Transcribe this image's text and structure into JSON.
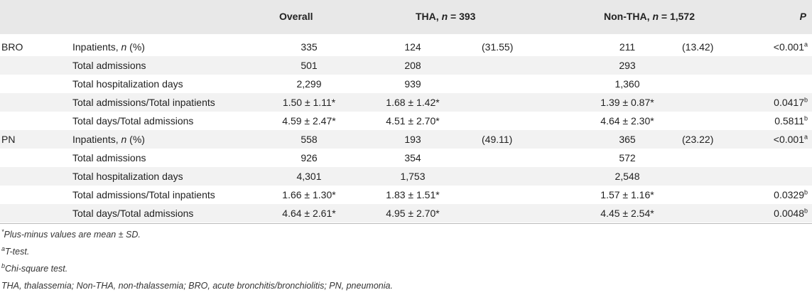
{
  "header": {
    "overall": "Overall",
    "tha_prefix": "THA, ",
    "tha_n": "n",
    "tha_suffix": " = 393",
    "non_prefix": "Non-THA, ",
    "non_n": "n",
    "non_suffix": " = 1,572",
    "p": "P"
  },
  "rows": [
    {
      "group": "BRO",
      "label_main": "Inpatients, ",
      "label_it": "n",
      "label_tail": " (%)",
      "overall": "335",
      "tha": "124",
      "tha_pct": "(31.55)",
      "non": "211",
      "non_pct": "(13.42)",
      "p": "<0.001",
      "p_sup": "a"
    },
    {
      "group": "",
      "label_main": "Total admissions",
      "label_it": "",
      "label_tail": "",
      "overall": "501",
      "tha": "208",
      "tha_pct": "",
      "non": "293",
      "non_pct": "",
      "p": "",
      "p_sup": ""
    },
    {
      "group": "",
      "label_main": "Total hospitalization days",
      "label_it": "",
      "label_tail": "",
      "overall": "2,299",
      "tha": "939",
      "tha_pct": "",
      "non": "1,360",
      "non_pct": "",
      "p": "",
      "p_sup": ""
    },
    {
      "group": "",
      "label_main": "Total admissions/Total inpatients",
      "label_it": "",
      "label_tail": "",
      "overall": "1.50 ± 1.11*",
      "tha": "1.68 ± 1.42*",
      "tha_pct": "",
      "non": "1.39 ± 0.87*",
      "non_pct": "",
      "p": "0.0417",
      "p_sup": "b"
    },
    {
      "group": "",
      "label_main": "Total days/Total admissions",
      "label_it": "",
      "label_tail": "",
      "overall": "4.59 ± 2.47*",
      "tha": "4.51 ± 2.70*",
      "tha_pct": "",
      "non": "4.64 ± 2.30*",
      "non_pct": "",
      "p": "0.5811",
      "p_sup": "b"
    },
    {
      "group": "PN",
      "label_main": "Inpatients, ",
      "label_it": "n",
      "label_tail": " (%)",
      "overall": "558",
      "tha": "193",
      "tha_pct": "(49.11)",
      "non": "365",
      "non_pct": "(23.22)",
      "p": "<0.001",
      "p_sup": "a"
    },
    {
      "group": "",
      "label_main": "Total admissions",
      "label_it": "",
      "label_tail": "",
      "overall": "926",
      "tha": "354",
      "tha_pct": "",
      "non": "572",
      "non_pct": "",
      "p": "",
      "p_sup": ""
    },
    {
      "group": "",
      "label_main": "Total hospitalization days",
      "label_it": "",
      "label_tail": "",
      "overall": "4,301",
      "tha": "1,753",
      "tha_pct": "",
      "non": "2,548",
      "non_pct": "",
      "p": "",
      "p_sup": ""
    },
    {
      "group": "",
      "label_main": "Total admissions/Total inpatients",
      "label_it": "",
      "label_tail": "",
      "overall": "1.66 ± 1.30*",
      "tha": "1.83 ± 1.51*",
      "tha_pct": "",
      "non": "1.57 ± 1.16*",
      "non_pct": "",
      "p": "0.0329",
      "p_sup": "b"
    },
    {
      "group": "",
      "label_main": "Total days/Total admissions",
      "label_it": "",
      "label_tail": "",
      "overall": "4.64 ± 2.61*",
      "tha": "4.95 ± 2.70*",
      "tha_pct": "",
      "non": "4.45 ± 2.54*",
      "non_pct": "",
      "p": "0.0048",
      "p_sup": "b"
    }
  ],
  "footnotes": [
    {
      "sup": "*",
      "text": "Plus-minus values are mean ± SD."
    },
    {
      "sup": "a",
      "text": "T-test."
    },
    {
      "sup": "b",
      "text": "Chi-square test."
    },
    {
      "sup": "",
      "text": "THA, thalassemia; Non-THA, non-thalassemia; BRO, acute bronchitis/bronchiolitis; PN, pneumonia."
    }
  ]
}
